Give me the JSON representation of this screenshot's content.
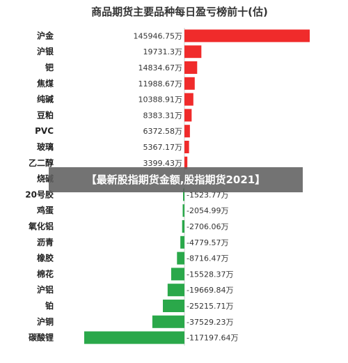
{
  "chart_data": {
    "type": "bar",
    "orientation": "horizontal",
    "title": "商品期货主要品种每日盈亏榜前十(估)",
    "categories": [
      "沪金",
      "沪银",
      "钯",
      "焦煤",
      "纯碱",
      "豆粕",
      "PVC",
      "玻璃",
      "乙二醇",
      "烧碱",
      "20号胶",
      "鸡蛋",
      "氧化铝",
      "沥青",
      "橡胶",
      "棉花",
      "沪铝",
      "铂",
      "沪铜",
      "碳酸锂"
    ],
    "values": [
      145946.75,
      19731.3,
      14834.67,
      11988.67,
      10388.91,
      8383.31,
      6372.58,
      5367.17,
      3399.43,
      null,
      -1523.77,
      -2054.99,
      -2706.06,
      -4779.57,
      -8716.47,
      -15528.37,
      -19669.84,
      -25215.71,
      -37529.23,
      -117197.64
    ],
    "value_labels": [
      "145946.75万",
      "19731.3万",
      "14834.67万",
      "11988.67万",
      "10388.91万",
      "8383.31万",
      "6372.58万",
      "5367.17万",
      "3399.43万",
      "",
      "-1523.77万",
      "-2054.99万",
      "-2706.06万",
      "-4779.57万",
      "-8716.47万",
      "-15528.37万",
      "-19669.84万",
      "-25215.71万",
      "-37529.23万",
      "-117197.64万"
    ],
    "colors": {
      "positive": "#f02b2b",
      "negative": "#2aa84a"
    },
    "xlim": [
      -117197.64,
      145946.75
    ]
  },
  "overlay_banner": "【最新股指期货金额,股指期货2021】"
}
